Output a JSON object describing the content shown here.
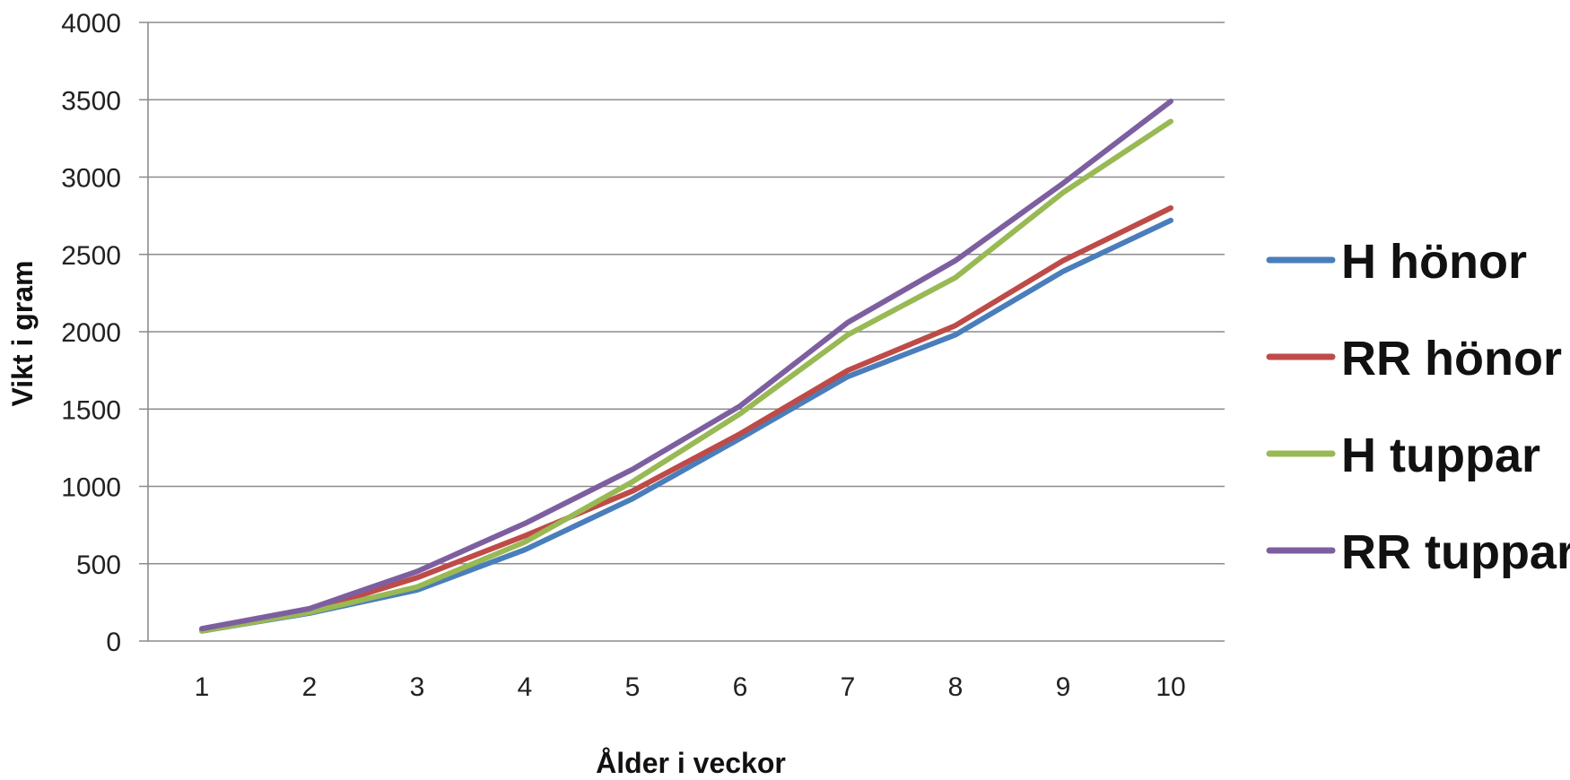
{
  "chart_data": {
    "type": "line",
    "title": "",
    "xlabel": "Ålder i veckor",
    "ylabel": "Vikt i gram",
    "categories": [
      "1",
      "2",
      "3",
      "4",
      "5",
      "6",
      "7",
      "8",
      "9",
      "10"
    ],
    "ylim": [
      0,
      4000
    ],
    "yticks": [
      "0",
      "500",
      "1000",
      "1500",
      "2000",
      "2500",
      "3000",
      "3500",
      "4000"
    ],
    "grid": true,
    "legend_position": "right",
    "series": [
      {
        "name": "H hönor",
        "color": "#4a7ebb",
        "values": [
          65,
          180,
          330,
          590,
          920,
          1310,
          1710,
          1980,
          2390,
          2720
        ]
      },
      {
        "name": "RR hönor",
        "color": "#be4b48",
        "values": [
          70,
          195,
          410,
          680,
          970,
          1340,
          1750,
          2040,
          2460,
          2800
        ]
      },
      {
        "name": "H tuppar",
        "color": "#98b954",
        "values": [
          65,
          185,
          350,
          640,
          1030,
          1470,
          1980,
          2350,
          2900,
          3360
        ]
      },
      {
        "name": "RR tuppar",
        "color": "#7d5fa0",
        "values": [
          80,
          210,
          450,
          760,
          1110,
          1520,
          2060,
          2460,
          2960,
          3490
        ]
      }
    ]
  }
}
